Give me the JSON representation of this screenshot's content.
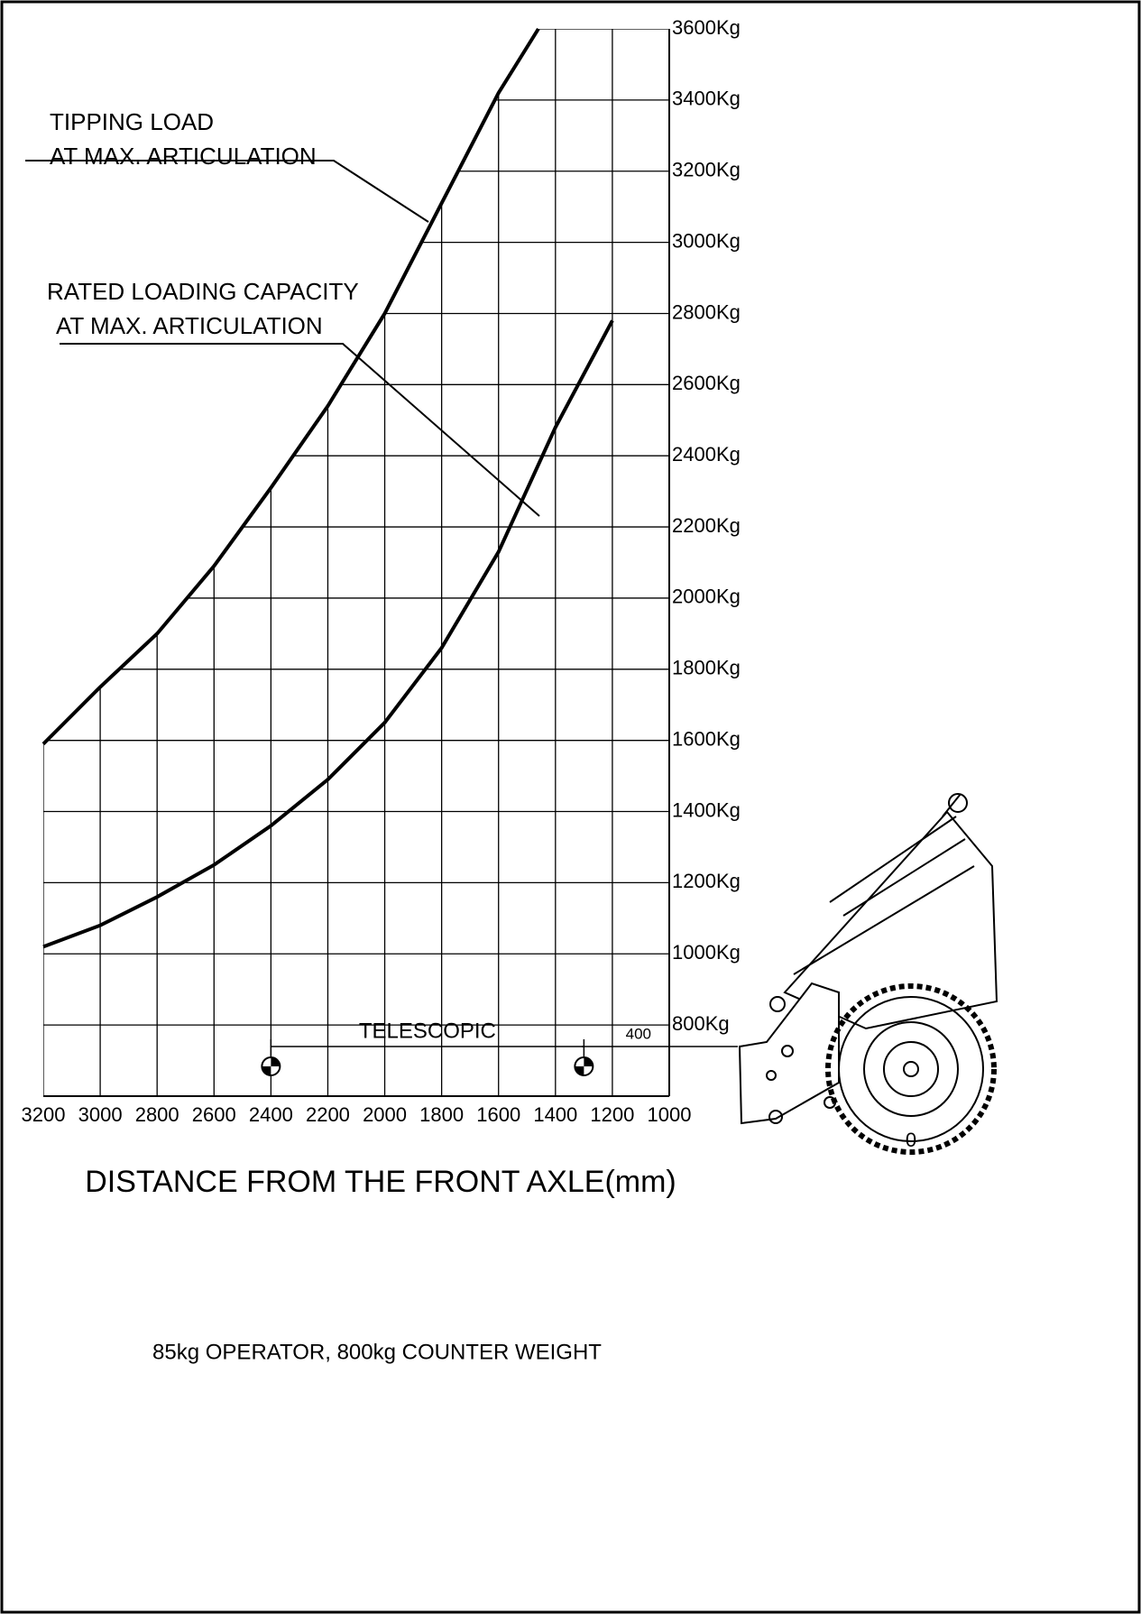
{
  "chart_data": {
    "type": "line",
    "xlabel": "DISTANCE FROM THE FRONT AXLE(mm)",
    "footer": "85kg OPERATOR, 800kg COUNTER WEIGHT",
    "xlim": [
      3200,
      1000
    ],
    "xticks": [
      3200,
      3000,
      2800,
      2600,
      2400,
      2200,
      2000,
      1800,
      1600,
      1400,
      1200,
      1000
    ],
    "ylim": [
      600,
      3600
    ],
    "yticks": [
      {
        "value": 800,
        "label": "800Kg"
      },
      {
        "value": 1000,
        "label": "1000Kg"
      },
      {
        "value": 1200,
        "label": "1200Kg"
      },
      {
        "value": 1400,
        "label": "1400Kg"
      },
      {
        "value": 1600,
        "label": "1600Kg"
      },
      {
        "value": 1800,
        "label": "1800Kg"
      },
      {
        "value": 2000,
        "label": "2000Kg"
      },
      {
        "value": 2200,
        "label": "2200Kg"
      },
      {
        "value": 2400,
        "label": "2400Kg"
      },
      {
        "value": 2600,
        "label": "2600Kg"
      },
      {
        "value": 2800,
        "label": "2800Kg"
      },
      {
        "value": 3000,
        "label": "3000Kg"
      },
      {
        "value": 3200,
        "label": "3200Kg"
      },
      {
        "value": 3400,
        "label": "3400Kg"
      },
      {
        "value": 3600,
        "label": "3600Kg"
      }
    ],
    "grid": true,
    "color": "#000000",
    "series": [
      {
        "label": [
          "TIPPING LOAD",
          "AT MAX. ARTICULATION"
        ],
        "x": [
          3200,
          3000,
          2800,
          2600,
          2400,
          2200,
          2000,
          1800,
          1600,
          1460
        ],
        "values": [
          1590,
          1750,
          1900,
          2090,
          2310,
          2540,
          2800,
          3110,
          3420,
          3600
        ]
      },
      {
        "label": [
          "RATED LOADING CAPACITY",
          "AT MAX. ARTICULATION"
        ],
        "x": [
          3200,
          3000,
          2800,
          2600,
          2400,
          2200,
          2000,
          1800,
          1600,
          1400,
          1200
        ],
        "values": [
          1020,
          1080,
          1160,
          1250,
          1360,
          1490,
          1650,
          1860,
          2130,
          2480,
          2780
        ]
      }
    ],
    "telescopic": {
      "label": "TELESCOPIC",
      "x": [
        2400,
        1300
      ]
    },
    "offset_label": "400",
    "axle_label": "0"
  }
}
